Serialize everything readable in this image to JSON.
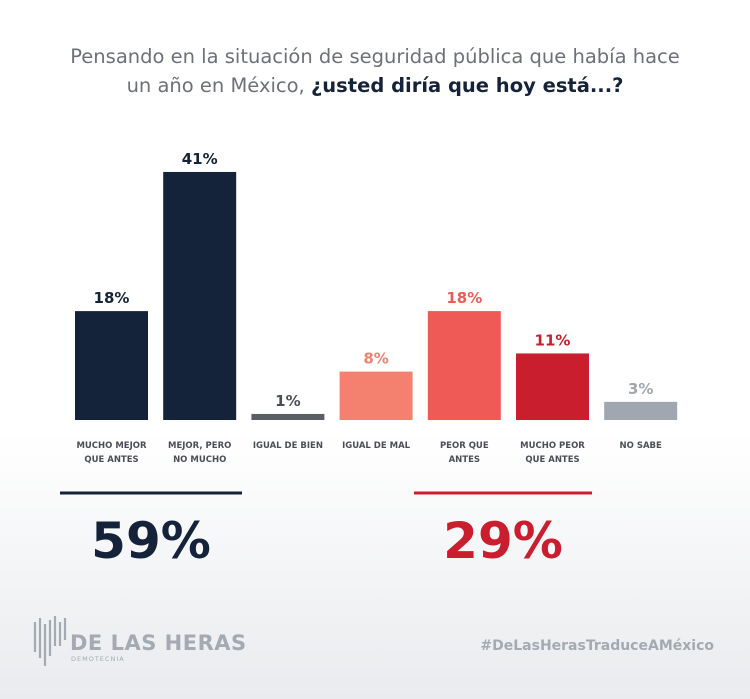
{
  "chart_data": {
    "type": "bar",
    "title": {
      "regular": "Pensando en la situación de seguridad pública que había hace un año en México,",
      "bold": "¿usted diría que hoy está...?"
    },
    "categories": [
      "MUCHO MEJOR\nQUE ANTES",
      "MEJOR, PERO\nNO MUCHO",
      "IGUAL DE BIEN",
      "IGUAL DE MAL",
      "PEOR QUE\nANTES",
      "MUCHO PEOR\nQUE ANTES",
      "NO SABE"
    ],
    "values": [
      18,
      41,
      1,
      8,
      18,
      11,
      3
    ],
    "value_labels": [
      "18%",
      "41%",
      "1%",
      "8%",
      "18%",
      "11%",
      "3%"
    ],
    "colors": [
      "#14233a",
      "#14233a",
      "#5a5f66",
      "#f4806f",
      "#ef5a57",
      "#c81e2e",
      "#a0a7b0"
    ],
    "label_colors": [
      "#14233a",
      "#14233a",
      "#4a4f57",
      "#f4806f",
      "#ef5a57",
      "#c81e2e",
      "#a0a7b0"
    ],
    "summary": [
      {
        "text": "59%",
        "color": "#14233a"
      },
      {
        "text": "29%",
        "color": "#c81e2e"
      }
    ]
  },
  "footer": {
    "brand": "DE LAS HERAS",
    "brand_sub": "DEMOTECNIA",
    "hashtag": "#DeLasHerasTraduceAMéxico"
  }
}
